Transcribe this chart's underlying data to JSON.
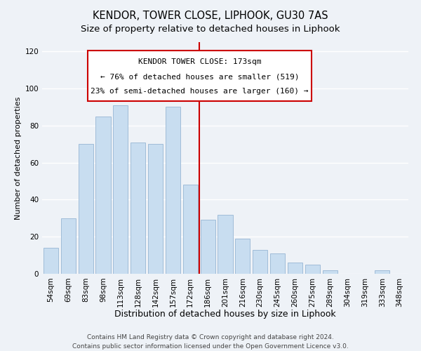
{
  "title": "KENDOR, TOWER CLOSE, LIPHOOK, GU30 7AS",
  "subtitle": "Size of property relative to detached houses in Liphook",
  "xlabel": "Distribution of detached houses by size in Liphook",
  "ylabel": "Number of detached properties",
  "categories": [
    "54sqm",
    "69sqm",
    "83sqm",
    "98sqm",
    "113sqm",
    "128sqm",
    "142sqm",
    "157sqm",
    "172sqm",
    "186sqm",
    "201sqm",
    "216sqm",
    "230sqm",
    "245sqm",
    "260sqm",
    "275sqm",
    "289sqm",
    "304sqm",
    "319sqm",
    "333sqm",
    "348sqm"
  ],
  "values": [
    14,
    30,
    70,
    85,
    91,
    71,
    70,
    90,
    48,
    29,
    32,
    19,
    13,
    11,
    6,
    5,
    2,
    0,
    0,
    2,
    0
  ],
  "bar_color": "#c8ddf0",
  "bar_edge_color": "#a0bcd8",
  "marker_line_color": "#cc0000",
  "annotation_line1": "KENDOR TOWER CLOSE: 173sqm",
  "annotation_line2": "← 76% of detached houses are smaller (519)",
  "annotation_line3": "23% of semi-detached houses are larger (160) →",
  "annotation_box_color": "#ffffff",
  "annotation_box_edge": "#cc0000",
  "ylim": [
    0,
    125
  ],
  "yticks": [
    0,
    20,
    40,
    60,
    80,
    100,
    120
  ],
  "footer1": "Contains HM Land Registry data © Crown copyright and database right 2024.",
  "footer2": "Contains public sector information licensed under the Open Government Licence v3.0.",
  "background_color": "#eef2f7",
  "title_fontsize": 10.5,
  "subtitle_fontsize": 9.5,
  "xlabel_fontsize": 9,
  "ylabel_fontsize": 8,
  "tick_fontsize": 7.5,
  "annotation_fontsize": 8,
  "footer_fontsize": 6.5
}
